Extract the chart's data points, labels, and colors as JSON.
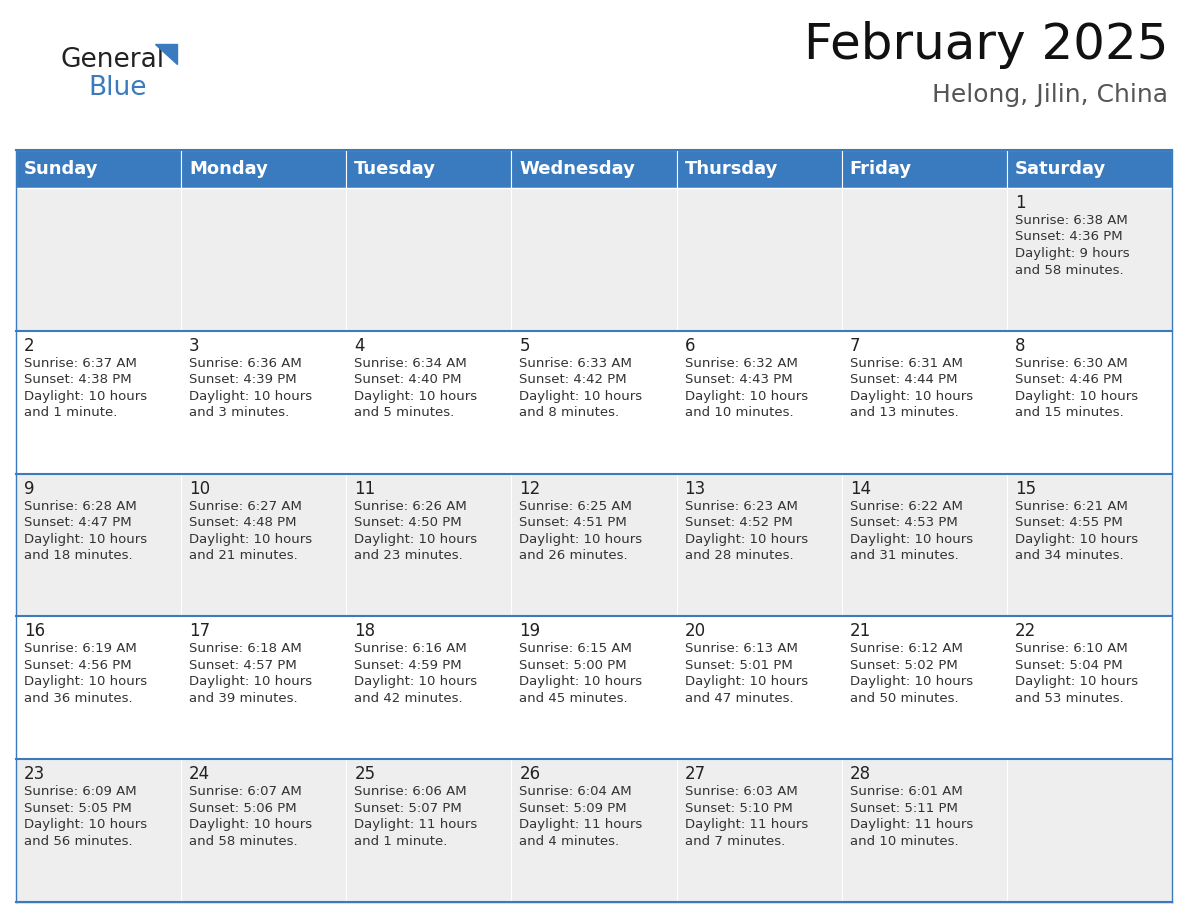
{
  "title": "February 2025",
  "subtitle": "Helong, Jilin, China",
  "header_color": "#3a7abf",
  "header_text_color": "#ffffff",
  "background_color": "#ffffff",
  "cell_bg_even": "#eeeeee",
  "cell_bg_odd": "#ffffff",
  "border_color": "#3a7abf",
  "line_color": "#3a7abf",
  "days_of_week": [
    "Sunday",
    "Monday",
    "Tuesday",
    "Wednesday",
    "Thursday",
    "Friday",
    "Saturday"
  ],
  "title_fontsize": 36,
  "subtitle_fontsize": 18,
  "day_header_fontsize": 13,
  "cell_day_fontsize": 12,
  "cell_text_fontsize": 9.5,
  "calendar": [
    [
      null,
      null,
      null,
      null,
      null,
      null,
      {
        "day": "1",
        "sunrise": "6:38 AM",
        "sunset": "4:36 PM",
        "daylight1": "Daylight: 9 hours",
        "daylight2": "and 58 minutes."
      }
    ],
    [
      {
        "day": "2",
        "sunrise": "6:37 AM",
        "sunset": "4:38 PM",
        "daylight1": "Daylight: 10 hours",
        "daylight2": "and 1 minute."
      },
      {
        "day": "3",
        "sunrise": "6:36 AM",
        "sunset": "4:39 PM",
        "daylight1": "Daylight: 10 hours",
        "daylight2": "and 3 minutes."
      },
      {
        "day": "4",
        "sunrise": "6:34 AM",
        "sunset": "4:40 PM",
        "daylight1": "Daylight: 10 hours",
        "daylight2": "and 5 minutes."
      },
      {
        "day": "5",
        "sunrise": "6:33 AM",
        "sunset": "4:42 PM",
        "daylight1": "Daylight: 10 hours",
        "daylight2": "and 8 minutes."
      },
      {
        "day": "6",
        "sunrise": "6:32 AM",
        "sunset": "4:43 PM",
        "daylight1": "Daylight: 10 hours",
        "daylight2": "and 10 minutes."
      },
      {
        "day": "7",
        "sunrise": "6:31 AM",
        "sunset": "4:44 PM",
        "daylight1": "Daylight: 10 hours",
        "daylight2": "and 13 minutes."
      },
      {
        "day": "8",
        "sunrise": "6:30 AM",
        "sunset": "4:46 PM",
        "daylight1": "Daylight: 10 hours",
        "daylight2": "and 15 minutes."
      }
    ],
    [
      {
        "day": "9",
        "sunrise": "6:28 AM",
        "sunset": "4:47 PM",
        "daylight1": "Daylight: 10 hours",
        "daylight2": "and 18 minutes."
      },
      {
        "day": "10",
        "sunrise": "6:27 AM",
        "sunset": "4:48 PM",
        "daylight1": "Daylight: 10 hours",
        "daylight2": "and 21 minutes."
      },
      {
        "day": "11",
        "sunrise": "6:26 AM",
        "sunset": "4:50 PM",
        "daylight1": "Daylight: 10 hours",
        "daylight2": "and 23 minutes."
      },
      {
        "day": "12",
        "sunrise": "6:25 AM",
        "sunset": "4:51 PM",
        "daylight1": "Daylight: 10 hours",
        "daylight2": "and 26 minutes."
      },
      {
        "day": "13",
        "sunrise": "6:23 AM",
        "sunset": "4:52 PM",
        "daylight1": "Daylight: 10 hours",
        "daylight2": "and 28 minutes."
      },
      {
        "day": "14",
        "sunrise": "6:22 AM",
        "sunset": "4:53 PM",
        "daylight1": "Daylight: 10 hours",
        "daylight2": "and 31 minutes."
      },
      {
        "day": "15",
        "sunrise": "6:21 AM",
        "sunset": "4:55 PM",
        "daylight1": "Daylight: 10 hours",
        "daylight2": "and 34 minutes."
      }
    ],
    [
      {
        "day": "16",
        "sunrise": "6:19 AM",
        "sunset": "4:56 PM",
        "daylight1": "Daylight: 10 hours",
        "daylight2": "and 36 minutes."
      },
      {
        "day": "17",
        "sunrise": "6:18 AM",
        "sunset": "4:57 PM",
        "daylight1": "Daylight: 10 hours",
        "daylight2": "and 39 minutes."
      },
      {
        "day": "18",
        "sunrise": "6:16 AM",
        "sunset": "4:59 PM",
        "daylight1": "Daylight: 10 hours",
        "daylight2": "and 42 minutes."
      },
      {
        "day": "19",
        "sunrise": "6:15 AM",
        "sunset": "5:00 PM",
        "daylight1": "Daylight: 10 hours",
        "daylight2": "and 45 minutes."
      },
      {
        "day": "20",
        "sunrise": "6:13 AM",
        "sunset": "5:01 PM",
        "daylight1": "Daylight: 10 hours",
        "daylight2": "and 47 minutes."
      },
      {
        "day": "21",
        "sunrise": "6:12 AM",
        "sunset": "5:02 PM",
        "daylight1": "Daylight: 10 hours",
        "daylight2": "and 50 minutes."
      },
      {
        "day": "22",
        "sunrise": "6:10 AM",
        "sunset": "5:04 PM",
        "daylight1": "Daylight: 10 hours",
        "daylight2": "and 53 minutes."
      }
    ],
    [
      {
        "day": "23",
        "sunrise": "6:09 AM",
        "sunset": "5:05 PM",
        "daylight1": "Daylight: 10 hours",
        "daylight2": "and 56 minutes."
      },
      {
        "day": "24",
        "sunrise": "6:07 AM",
        "sunset": "5:06 PM",
        "daylight1": "Daylight: 10 hours",
        "daylight2": "and 58 minutes."
      },
      {
        "day": "25",
        "sunrise": "6:06 AM",
        "sunset": "5:07 PM",
        "daylight1": "Daylight: 11 hours",
        "daylight2": "and 1 minute."
      },
      {
        "day": "26",
        "sunrise": "6:04 AM",
        "sunset": "5:09 PM",
        "daylight1": "Daylight: 11 hours",
        "daylight2": "and 4 minutes."
      },
      {
        "day": "27",
        "sunrise": "6:03 AM",
        "sunset": "5:10 PM",
        "daylight1": "Daylight: 11 hours",
        "daylight2": "and 7 minutes."
      },
      {
        "day": "28",
        "sunrise": "6:01 AM",
        "sunset": "5:11 PM",
        "daylight1": "Daylight: 11 hours",
        "daylight2": "and 10 minutes."
      },
      null
    ]
  ]
}
